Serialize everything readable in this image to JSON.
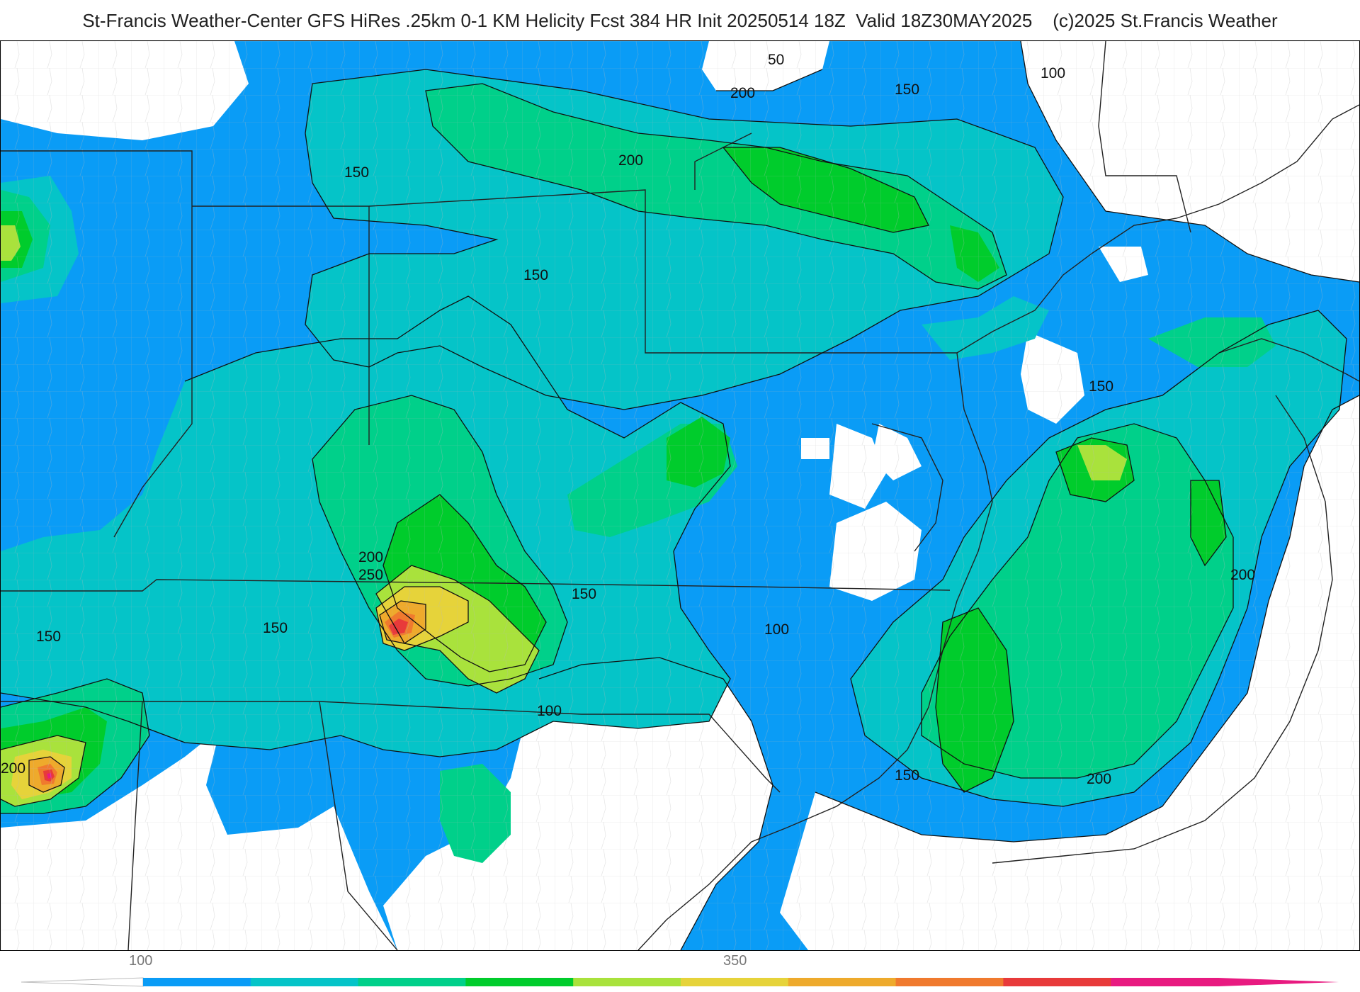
{
  "header": {
    "title": "St-Francis Weather-Center GFS HiRes .25km 0-1 KM Helicity Fcst 384 HR Init 20250514 18Z  Valid 18Z30MAY2025    (c)2025 St.Francis Weather"
  },
  "palette": {
    "background": "#ffffff",
    "level_100": "#0a9cf6",
    "level_150": "#05c4c8",
    "level_200": "#00d08a",
    "level_250": "#00cc2c",
    "level_300": "#a9e23c",
    "level_350": "#e6d33a",
    "level_400": "#eeaa2c",
    "level_450": "#f07a2e",
    "level_500": "#e83a3a",
    "level_550": "#e81a80",
    "contour_line": "#111111",
    "state_border": "#222222",
    "county_border": "#b9b9b9"
  },
  "contour_labels": [
    {
      "text": "50"
    },
    {
      "text": "200"
    },
    {
      "text": "150"
    },
    {
      "text": "100"
    },
    {
      "text": "150"
    },
    {
      "text": "200"
    },
    {
      "text": "150"
    },
    {
      "text": "150"
    },
    {
      "text": "200"
    },
    {
      "text": "250"
    },
    {
      "text": "150"
    },
    {
      "text": "150"
    },
    {
      "text": "100"
    },
    {
      "text": "150"
    },
    {
      "text": "200"
    },
    {
      "text": "100"
    },
    {
      "text": "150"
    },
    {
      "text": "200"
    },
    {
      "text": "200"
    }
  ],
  "colorbar": {
    "tick_labels": [
      "100",
      "350"
    ],
    "colors": [
      "#0a9cf6",
      "#05c4c8",
      "#00d08a",
      "#00cc2c",
      "#a9e23c",
      "#e6d33a",
      "#eeaa2c",
      "#f07a2e",
      "#e83a3a",
      "#e81a80"
    ]
  }
}
